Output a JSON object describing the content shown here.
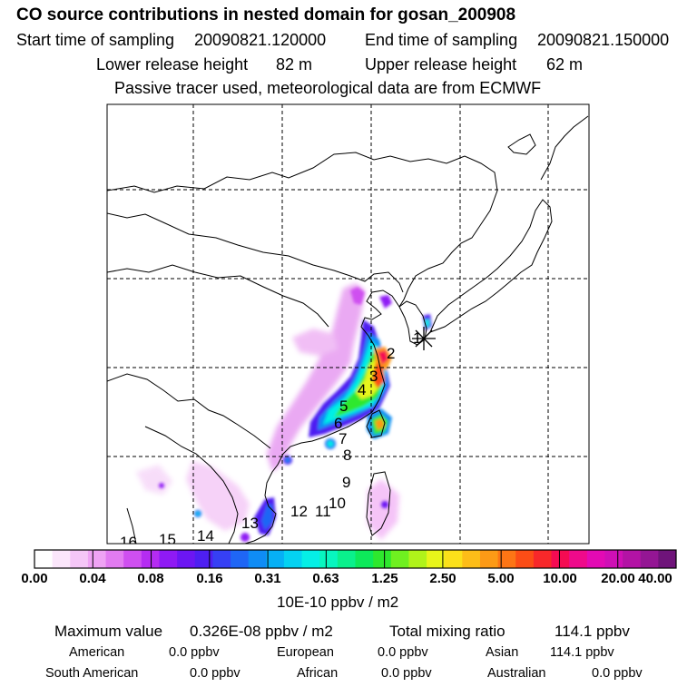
{
  "header": {
    "title": "CO  source contributions in nested domain for gosan_200908",
    "start_label": "Start time of sampling",
    "start_value": "20090821.120000",
    "end_label": "End time of sampling",
    "end_value": "20090821.150000",
    "lower_label": "Lower release height",
    "lower_value": "82 m",
    "upper_label": "Upper release height",
    "upper_value": "62 m",
    "subtitle": "Passive tracer used, meteorological data are from ECMWF"
  },
  "map": {
    "receptor_icon": "asterisk-receptor-icon",
    "track_points": [
      "1",
      "2",
      "3",
      "4",
      "5",
      "6",
      "7",
      "8",
      "9",
      "10",
      "11",
      "12",
      "13",
      "14",
      "15",
      "16"
    ]
  },
  "colorbar": {
    "colors": [
      "#ffffff",
      "#fbe6fb",
      "#f5c6f7",
      "#efa3f4",
      "#e27bf1",
      "#cf4ff0",
      "#b52cf2",
      "#8f1af4",
      "#6c16f3",
      "#4e1ff2",
      "#3640f4",
      "#1f66f5",
      "#0f8cf5",
      "#06b0f5",
      "#04d2f2",
      "#05efe6",
      "#08f6bf",
      "#0af08c",
      "#0de95a",
      "#2ee82e",
      "#6ff020",
      "#b0f31a",
      "#e8f51a",
      "#fbe01a",
      "#fdbd18",
      "#fd9a16",
      "#fd7515",
      "#fc4d16",
      "#f8282a",
      "#f50b52",
      "#ef0a8b",
      "#e30ab4",
      "#cf0fb5",
      "#b313a5",
      "#941694",
      "#6f147a"
    ],
    "labels": [
      "0.00",
      "0.04",
      "0.08",
      "0.16",
      "0.31",
      "0.63",
      "1.25",
      "2.50",
      "5.00",
      "10.00",
      "20.00",
      "40.00"
    ],
    "unit": "10E-10 ppbv / m2"
  },
  "stats": {
    "max_label": "Maximum value",
    "max_value": "0.326E-08 ppbv / m2",
    "total_label": "Total mixing ratio",
    "total_value": "114.1 ppbv",
    "regions": [
      {
        "name": "American",
        "value": "0.0 ppbv"
      },
      {
        "name": "European",
        "value": "0.0 ppbv"
      },
      {
        "name": "Asian",
        "value": "114.1 ppbv"
      },
      {
        "name": "South American",
        "value": "0.0 ppbv"
      },
      {
        "name": "African",
        "value": "0.0 ppbv"
      },
      {
        "name": "Australian",
        "value": "0.0 ppbv"
      }
    ]
  }
}
